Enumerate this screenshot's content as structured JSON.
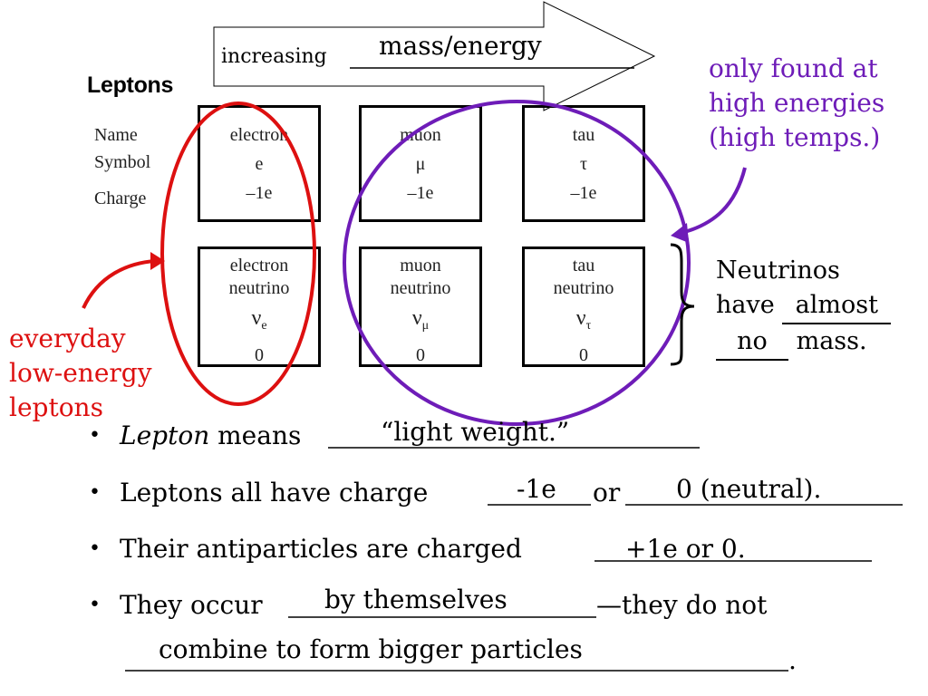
{
  "title": "Leptons",
  "row_labels": {
    "name": "Name",
    "symbol": "Symbol",
    "charge": "Charge"
  },
  "charged": [
    {
      "name": "electron",
      "symbol": "e",
      "charge": "–1e"
    },
    {
      "name": "muon",
      "symbol": "μ",
      "charge": "–1e"
    },
    {
      "name": "tau",
      "symbol": "τ",
      "charge": "–1e"
    }
  ],
  "neutrinos": [
    {
      "name1": "electron",
      "name2": "neutrino",
      "symbol": "ν",
      "sub": "e",
      "charge": "0"
    },
    {
      "name1": "muon",
      "name2": "neutrino",
      "symbol": "ν",
      "sub": "μ",
      "charge": "0"
    },
    {
      "name1": "tau",
      "name2": "neutrino",
      "symbol": "ν",
      "sub": "τ",
      "charge": "0"
    }
  ],
  "arrow": {
    "prefix": "increasing",
    "answer": "mass/energy"
  },
  "purple_note": [
    "only found at",
    "high energies",
    "(high temps.)"
  ],
  "red_note": [
    "everyday",
    "low-energy",
    "leptons"
  ],
  "neutrino_note": {
    "line1": "Neutrinos",
    "have": "have",
    "almost": "almost",
    "no": "no",
    "mass": "mass."
  },
  "bullets": {
    "b1": {
      "italic": "Lepton",
      "text": " means",
      "answer": "“light weight.”"
    },
    "b2": {
      "text": "Leptons all have charge ",
      "answer1": "-1e",
      "or": "or",
      "answer2": "0 (neutral)."
    },
    "b3": {
      "text": "Their antiparticles are charged ",
      "answer": "+1e or 0."
    },
    "b4": {
      "text": "They occur",
      "answer": "by themselves",
      "rest": "—they do not",
      "answer2": "combine to form bigger particles",
      "end": "."
    }
  },
  "colors": {
    "purple": "#6e1cb8",
    "red": "#dd1010"
  }
}
